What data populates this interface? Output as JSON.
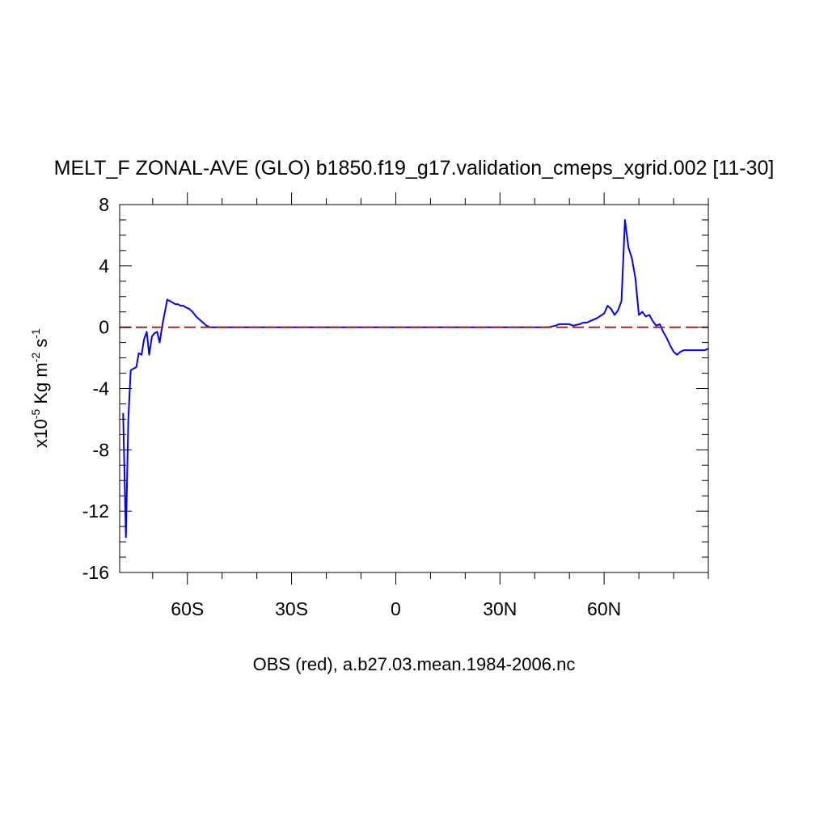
{
  "chart_data": {
    "type": "line",
    "title": "MELT_F ZONAL-AVE (GLO) b1850.f19_g17.validation_cmeps_xgrid.002 [11-30]",
    "xlabel": "OBS (red), a.b27.03.mean.1984-2006.nc",
    "ylabel": {
      "prefix": "x10",
      "exp": "-5",
      "unit_main": " Kg m",
      "unit_exp1": "-2",
      "unit_s": " s",
      "unit_exp2": "-1"
    },
    "xlim": [
      -79.5,
      90
    ],
    "ylim": [
      -16,
      8
    ],
    "x_ticks": [
      {
        "value": -60,
        "label": "60S"
      },
      {
        "value": -30,
        "label": "30S"
      },
      {
        "value": 0,
        "label": "0"
      },
      {
        "value": 30,
        "label": "30N"
      },
      {
        "value": 60,
        "label": "60N"
      }
    ],
    "y_ticks": [
      {
        "value": 8,
        "label": "8"
      },
      {
        "value": 4,
        "label": "4"
      },
      {
        "value": 0,
        "label": "0"
      },
      {
        "value": -4,
        "label": "-4"
      },
      {
        "value": -8,
        "label": "-8"
      },
      {
        "value": -12,
        "label": "-12"
      },
      {
        "value": -16,
        "label": "-16"
      }
    ],
    "series": [
      {
        "color": "#0000ff",
        "style": "solid",
        "x": [
          -78.5,
          -77.7,
          -77.0,
          -76.3,
          -75.5,
          -74.7,
          -74.0,
          -73.2,
          -72.5,
          -71.7,
          -71.0,
          -70.2,
          -69.5,
          -68.7,
          -68.0,
          -67.5,
          -67.0,
          -66.3,
          -65.8,
          -65.0,
          -64.2,
          -63.5,
          -62.7,
          -62.0,
          -61.2,
          -60.5,
          -59.5,
          -58.5,
          -57.5,
          -56.5,
          -55.5,
          -54.5,
          -53.5,
          -52.5,
          -51.5,
          -50.5,
          -45,
          -30,
          0,
          30,
          44,
          45,
          46,
          47,
          48,
          49,
          50,
          51,
          52,
          53,
          54,
          55,
          56,
          57,
          58,
          59,
          60,
          61,
          62,
          63,
          64,
          65,
          66,
          67,
          68,
          69,
          70,
          71,
          72,
          73,
          74,
          75,
          76,
          77,
          78,
          79,
          80,
          81,
          82,
          83,
          84,
          85,
          86,
          87,
          88,
          89,
          90
        ],
        "y": [
          -5.6,
          -13.7,
          -6.0,
          -2.8,
          -2.7,
          -2.6,
          -1.7,
          -1.8,
          -0.8,
          -0.3,
          -1.8,
          -0.6,
          -0.4,
          -0.3,
          -1.0,
          -0.3,
          0.4,
          1.2,
          1.8,
          1.7,
          1.6,
          1.5,
          1.5,
          1.4,
          1.4,
          1.3,
          1.2,
          1.0,
          0.7,
          0.5,
          0.3,
          0.1,
          0.0,
          0.0,
          0.0,
          0.0,
          0.0,
          0.0,
          0.0,
          0.0,
          0.0,
          0.05,
          0.1,
          0.2,
          0.2,
          0.2,
          0.2,
          0.1,
          0.15,
          0.2,
          0.3,
          0.3,
          0.4,
          0.5,
          0.6,
          0.75,
          0.9,
          1.4,
          1.2,
          0.8,
          1.1,
          1.7,
          7.0,
          5.2,
          4.5,
          3.2,
          0.8,
          1.0,
          0.7,
          0.8,
          0.4,
          0.1,
          0.2,
          -0.3,
          -0.7,
          -1.2,
          -1.6,
          -1.8,
          -1.6,
          -1.5,
          -1.5,
          -1.5,
          -1.5,
          -1.5,
          -1.5,
          -1.5,
          -1.4
        ]
      },
      {
        "color": "#b22222",
        "style": "dashed",
        "x": [
          -79.5,
          90
        ],
        "y": [
          0,
          0
        ]
      }
    ],
    "grid": false
  }
}
